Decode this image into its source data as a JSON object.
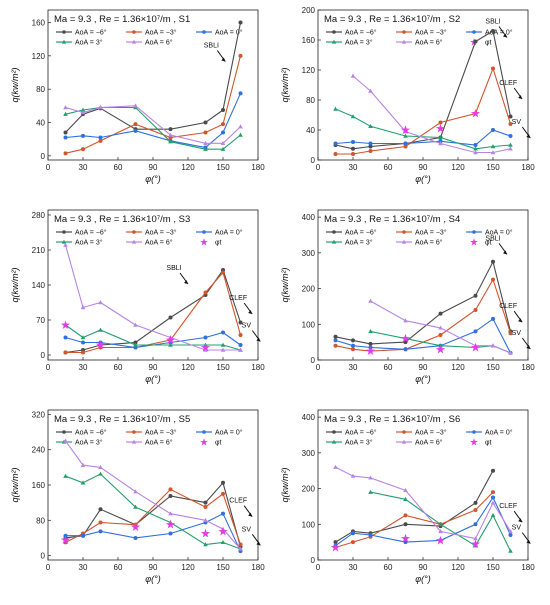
{
  "colors": {
    "aoa_m6": "#4a4a4a",
    "aoa_m3": "#d2552b",
    "aoa_0": "#2f6fe0",
    "aoa_3": "#21a06b",
    "aoa_6": "#b884e6",
    "phi_t": "#e43be6"
  },
  "chart_data": [
    {
      "id": "S1",
      "type": "line",
      "title_main": "Ma = 9.3 , Re = 1.36×10⁷/m , S1",
      "xlabel": "φ(°)",
      "ylabel": "q(kw/m²)",
      "xlim": [
        0,
        180
      ],
      "ylim": [
        -5,
        175
      ],
      "xticks": [
        "0",
        "30",
        "60",
        "90",
        "120",
        "150",
        "180"
      ],
      "yticks": [
        "0",
        "40",
        "80",
        "120",
        "160"
      ],
      "ytick_values": [
        0,
        40,
        80,
        120,
        160
      ],
      "legend": [
        "AoA = −6°",
        "AoA = −3°",
        "AoA = 0°",
        "AoA = 3°",
        "AoA = 6°"
      ],
      "x": [
        15,
        30,
        45,
        75,
        105,
        135,
        150,
        165
      ],
      "series": [
        {
          "name": "AoA = −6°",
          "values": [
            28,
            50,
            57,
            32,
            32,
            40,
            55,
            160
          ]
        },
        {
          "name": "AoA = −3°",
          "values": [
            3,
            8,
            18,
            38,
            22,
            28,
            38,
            120
          ]
        },
        {
          "name": "AoA = 0°",
          "values": [
            22,
            24,
            22,
            30,
            18,
            10,
            28,
            75
          ]
        },
        {
          "name": "AoA = 3°",
          "values": [
            50,
            55,
            58,
            58,
            17,
            8,
            8,
            25
          ]
        },
        {
          "name": "AoA = 6°",
          "values": [
            58,
            52,
            58,
            60,
            25,
            15,
            15,
            35
          ]
        }
      ],
      "phi_t": [],
      "annotations": [
        {
          "text": "SBLI",
          "x": 140,
          "y": 130
        }
      ]
    },
    {
      "id": "S2",
      "type": "line",
      "title_main": "Ma = 9.3 , Re = 1.36×10⁷/m , S2",
      "xlabel": "φ(°)",
      "ylabel": "q(kw/m²)",
      "xlim": [
        0,
        180
      ],
      "ylim": [
        0,
        200
      ],
      "xticks": [
        "0",
        "30",
        "60",
        "90",
        "120",
        "150",
        "180"
      ],
      "yticks": [
        "0",
        "40",
        "80",
        "120",
        "160",
        "200"
      ],
      "ytick_values": [
        0,
        40,
        80,
        120,
        160,
        200
      ],
      "legend": [
        "AoA = −6°",
        "AoA = −3°",
        "AoA = 0°",
        "AoA = 3°",
        "AoA = 6°",
        "φt"
      ],
      "x": [
        15,
        30,
        45,
        75,
        105,
        135,
        150,
        165
      ],
      "series": [
        {
          "name": "AoA = −6°",
          "values": [
            20,
            15,
            18,
            22,
            30,
            158,
            172,
            58
          ]
        },
        {
          "name": "AoA = −3°",
          "values": [
            8,
            8,
            12,
            18,
            50,
            62,
            122,
            48
          ]
        },
        {
          "name": "AoA = 0°",
          "values": [
            22,
            24,
            22,
            22,
            25,
            20,
            40,
            32
          ]
        },
        {
          "name": "AoA = 3°",
          "values": [
            68,
            58,
            45,
            32,
            30,
            15,
            18,
            20
          ]
        },
        {
          "name": "AoA = 6°",
          "values": [
            null,
            112,
            92,
            38,
            22,
            10,
            10,
            15
          ]
        }
      ],
      "phi_t": [
        {
          "x": 75,
          "y": 40
        },
        {
          "x": 105,
          "y": 42
        },
        {
          "x": 135,
          "y": 62
        }
      ],
      "annotations": [
        {
          "text": "SBLI",
          "x": 150,
          "y": 182
        },
        {
          "text": "CLEF",
          "x": 163,
          "y": 100
        },
        {
          "text": "SV",
          "x": 170,
          "y": 48
        }
      ]
    },
    {
      "id": "S3",
      "type": "line",
      "title_main": "Ma = 9.3 , Re = 1.36×10⁷/m , S3",
      "xlabel": "φ(°)",
      "ylabel": "q(kw/m²)",
      "xlim": [
        0,
        180
      ],
      "ylim": [
        -10,
        290
      ],
      "xticks": [
        "0",
        "30",
        "60",
        "90",
        "120",
        "150",
        "180"
      ],
      "yticks": [
        "0",
        "70",
        "140",
        "210",
        "280"
      ],
      "ytick_values": [
        0,
        70,
        140,
        210,
        280
      ],
      "legend": [
        "AoA = −6°",
        "AoA = −3°",
        "AoA = 0°",
        "AoA = 3°",
        "AoA = 6°",
        "φt"
      ],
      "x": [
        15,
        30,
        45,
        75,
        105,
        135,
        150,
        165
      ],
      "series": [
        {
          "name": "AoA = −6°",
          "values": [
            5,
            10,
            20,
            25,
            75,
            120,
            170,
            65
          ]
        },
        {
          "name": "AoA = −3°",
          "values": [
            5,
            5,
            15,
            15,
            30,
            125,
            165,
            40
          ]
        },
        {
          "name": "AoA = 0°",
          "values": [
            35,
            25,
            25,
            15,
            25,
            35,
            45,
            20
          ]
        },
        {
          "name": "AoA = 3°",
          "values": [
            60,
            35,
            50,
            20,
            20,
            20,
            20,
            10
          ]
        },
        {
          "name": "AoA = 6°",
          "values": [
            220,
            95,
            105,
            60,
            35,
            10,
            10,
            10
          ]
        }
      ],
      "phi_t": [
        {
          "x": 15,
          "y": 60
        },
        {
          "x": 45,
          "y": 20
        },
        {
          "x": 105,
          "y": 30
        },
        {
          "x": 135,
          "y": 15
        }
      ],
      "annotations": [
        {
          "text": "SBLI",
          "x": 108,
          "y": 170
        },
        {
          "text": "CLEF",
          "x": 163,
          "y": 110
        },
        {
          "text": "SV",
          "x": 170,
          "y": 55
        }
      ]
    },
    {
      "id": "S4",
      "type": "line",
      "title_main": "Ma = 9.3 , Re = 1.36×10⁷/m , S4",
      "xlabel": "φ(°)",
      "ylabel": "q(kw/m²)",
      "xlim": [
        0,
        180
      ],
      "ylim": [
        0,
        420
      ],
      "xticks": [
        "0",
        "30",
        "60",
        "90",
        "120",
        "150",
        "180"
      ],
      "yticks": [
        "0",
        "100",
        "200",
        "300",
        "400"
      ],
      "ytick_values": [
        0,
        100,
        200,
        300,
        400
      ],
      "legend": [
        "AoA = −6°",
        "AoA = −3°",
        "AoA = 0°",
        "AoA = 3°",
        "AoA = 6°",
        "φt"
      ],
      "x": [
        15,
        30,
        45,
        75,
        105,
        135,
        150,
        165
      ],
      "series": [
        {
          "name": "AoA = −6°",
          "values": [
            65,
            55,
            45,
            50,
            130,
            180,
            275,
            80
          ]
        },
        {
          "name": "AoA = −3°",
          "values": [
            40,
            30,
            25,
            30,
            70,
            140,
            225,
            75
          ]
        },
        {
          "name": "AoA = 0°",
          "values": [
            55,
            40,
            35,
            30,
            40,
            80,
            115,
            20
          ]
        },
        {
          "name": "AoA = 3°",
          "values": [
            null,
            null,
            80,
            60,
            40,
            35,
            40,
            20
          ]
        },
        {
          "name": "AoA = 6°",
          "values": [
            null,
            null,
            165,
            110,
            90,
            40,
            40,
            20
          ]
        }
      ],
      "phi_t": [
        {
          "x": 45,
          "y": 25
        },
        {
          "x": 75,
          "y": 60
        },
        {
          "x": 105,
          "y": 30
        },
        {
          "x": 135,
          "y": 35
        }
      ],
      "annotations": [
        {
          "text": "SBLI",
          "x": 150,
          "y": 335
        },
        {
          "text": "CLEF",
          "x": 163,
          "y": 145
        },
        {
          "text": "SV",
          "x": 170,
          "y": 70
        }
      ]
    },
    {
      "id": "S5",
      "type": "line",
      "title_main": "Ma = 9.3 , Re = 1.36×10⁷/m , S5",
      "xlabel": "φ(°)",
      "ylabel": "q(kw/m²)",
      "xlim": [
        0,
        180
      ],
      "ylim": [
        -10,
        330
      ],
      "xticks": [
        "0",
        "30",
        "60",
        "90",
        "120",
        "150",
        "180"
      ],
      "yticks": [
        "0",
        "80",
        "160",
        "240",
        "320"
      ],
      "ytick_values": [
        0,
        80,
        160,
        240,
        320
      ],
      "legend": [
        "AoA = −6°",
        "AoA = −3°",
        "AoA = 0°",
        "AoA = 3°",
        "AoA = 6°",
        "φt"
      ],
      "x": [
        15,
        30,
        45,
        75,
        105,
        135,
        150,
        165
      ],
      "series": [
        {
          "name": "AoA = −6°",
          "values": [
            40,
            45,
            105,
            70,
            135,
            120,
            165,
            20
          ]
        },
        {
          "name": "AoA = −3°",
          "values": [
            30,
            50,
            75,
            70,
            150,
            110,
            140,
            25
          ]
        },
        {
          "name": "AoA = 0°",
          "values": [
            45,
            45,
            55,
            40,
            50,
            75,
            95,
            10
          ]
        },
        {
          "name": "AoA = 3°",
          "values": [
            180,
            165,
            185,
            110,
            75,
            25,
            30,
            15
          ]
        },
        {
          "name": "AoA = 6°",
          "values": [
            260,
            205,
            200,
            145,
            95,
            80,
            60,
            15
          ]
        }
      ],
      "phi_t": [
        {
          "x": 15,
          "y": 35
        },
        {
          "x": 75,
          "y": 65
        },
        {
          "x": 105,
          "y": 70
        },
        {
          "x": 135,
          "y": 50
        },
        {
          "x": 150,
          "y": 55
        }
      ],
      "annotations": [
        {
          "text": "CLEF",
          "x": 163,
          "y": 120
        },
        {
          "text": "SV",
          "x": 170,
          "y": 55
        }
      ]
    },
    {
      "id": "S6",
      "type": "line",
      "title_main": "Ma = 9.3 , Re = 1.36×10⁷/m , S6",
      "xlabel": "φ(°)",
      "ylabel": "q(kw/m²)",
      "xlim": [
        0,
        180
      ],
      "ylim": [
        0,
        420
      ],
      "xticks": [
        "0",
        "30",
        "60",
        "90",
        "120",
        "150",
        "180"
      ],
      "yticks": [
        "0",
        "100",
        "200",
        "300",
        "400"
      ],
      "ytick_values": [
        0,
        100,
        200,
        300,
        400
      ],
      "legend": [
        "AoA = −6°",
        "AoA = −3°",
        "AoA = 0°",
        "AoA = 3°",
        "AoA = 6°",
        "φt"
      ],
      "x": [
        15,
        30,
        45,
        75,
        105,
        135,
        150,
        165
      ],
      "series": [
        {
          "name": "AoA = −6°",
          "values": [
            50,
            80,
            75,
            100,
            95,
            160,
            250,
            null
          ]
        },
        {
          "name": "AoA = −3°",
          "values": [
            35,
            50,
            65,
            125,
            100,
            140,
            190,
            null
          ]
        },
        {
          "name": "AoA = 0°",
          "values": [
            40,
            75,
            70,
            50,
            55,
            100,
            175,
            70
          ]
        },
        {
          "name": "AoA = 3°",
          "values": [
            null,
            null,
            190,
            170,
            100,
            40,
            125,
            25
          ]
        },
        {
          "name": "AoA = 6°",
          "values": [
            260,
            235,
            230,
            195,
            80,
            60,
            160,
            80
          ]
        }
      ],
      "phi_t": [
        {
          "x": 15,
          "y": 35
        },
        {
          "x": 75,
          "y": 60
        },
        {
          "x": 105,
          "y": 55
        },
        {
          "x": 135,
          "y": 45
        }
      ],
      "annotations": [
        {
          "text": "CLEF",
          "x": 163,
          "y": 145
        },
        {
          "text": "SV",
          "x": 170,
          "y": 85
        }
      ]
    }
  ]
}
